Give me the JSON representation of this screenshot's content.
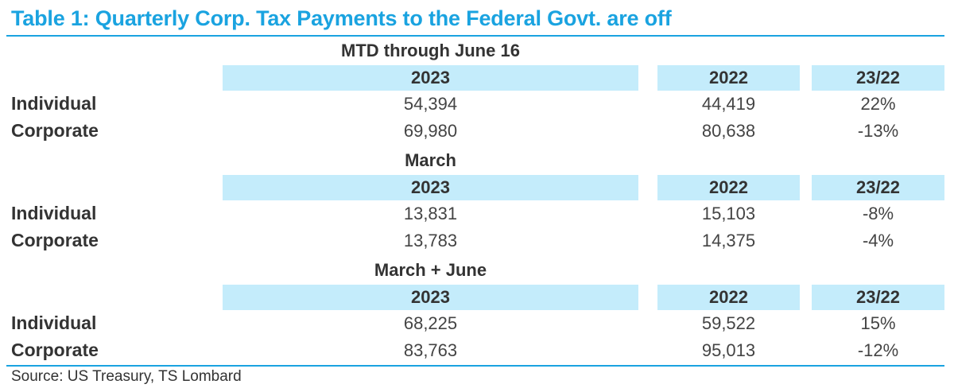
{
  "title": "Table 1: Quarterly Corp. Tax Payments to the Federal Govt. are off",
  "columns": {
    "c1": "2023",
    "c2": "2022",
    "c3": "23/22"
  },
  "sections": [
    {
      "title": "MTD through June 16",
      "rows": [
        {
          "label": "Individual",
          "v2023": "54,394",
          "v2022": "44,419",
          "ratio": "22%"
        },
        {
          "label": "Corporate",
          "v2023": "69,980",
          "v2022": "80,638",
          "ratio": "-13%"
        }
      ]
    },
    {
      "title": "March",
      "rows": [
        {
          "label": "Individual",
          "v2023": "13,831",
          "v2022": "15,103",
          "ratio": "-8%"
        },
        {
          "label": "Corporate",
          "v2023": "13,783",
          "v2022": "14,375",
          "ratio": "-4%"
        }
      ]
    },
    {
      "title": "March + June",
      "rows": [
        {
          "label": "Individual",
          "v2023": "68,225",
          "v2022": "59,522",
          "ratio": "15%"
        },
        {
          "label": "Corporate",
          "v2023": "83,763",
          "v2022": "95,013",
          "ratio": "-12%"
        }
      ]
    }
  ],
  "source": "Source: US Treasury, TS Lombard",
  "colors": {
    "accent": "#1aa3e0",
    "header_fill": "#c4ecfb"
  }
}
